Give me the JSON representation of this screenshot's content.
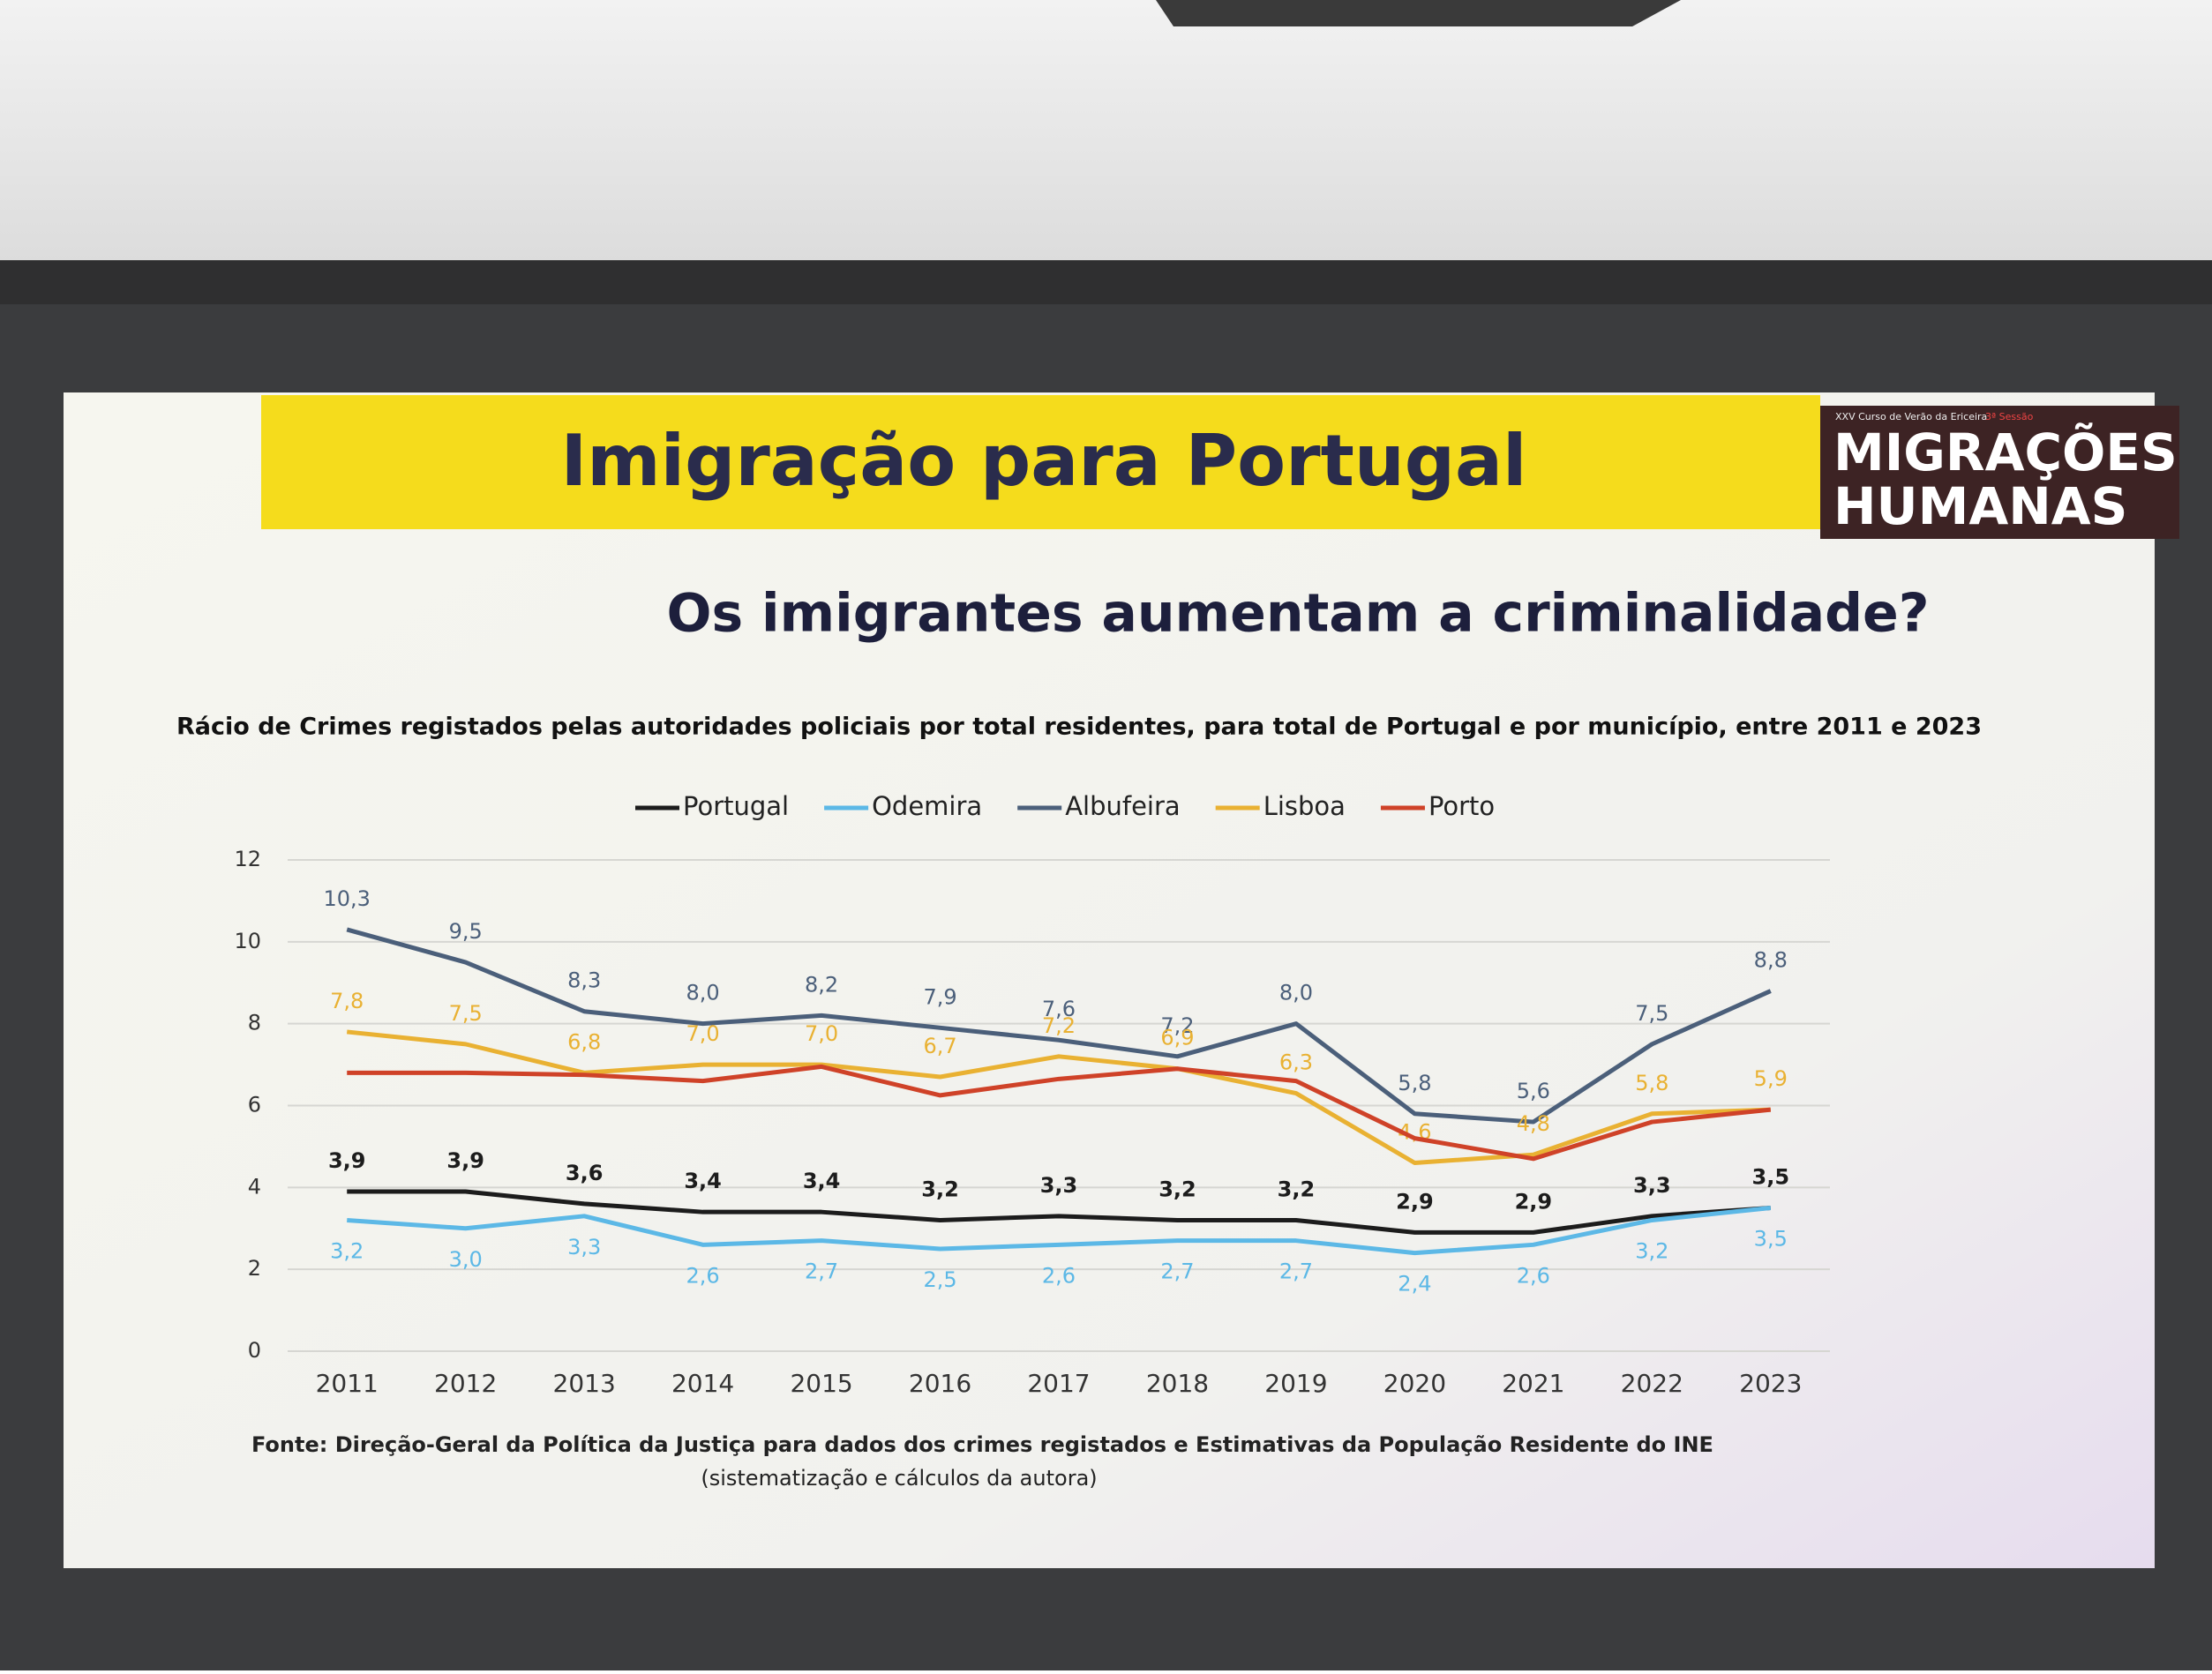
{
  "slide": {
    "title": "Imigração para Portugal",
    "question": "Os imigrantes aumentam a criminalidade?",
    "logo": {
      "caption": "XXV Curso de Verão da Ericeira",
      "session": "3ª Sessão",
      "line1": "MIGRAÇÕES",
      "line2": "HUMANAS"
    },
    "source": "Fonte: Direção-Geral da Política da Justiça para dados dos crimes registados e Estimativas da População Residente do INE",
    "source_note": "(sistematização e cálculos da autora)"
  },
  "chart_data": {
    "type": "line",
    "title": "Rácio de Crimes registados pelas autoridades policiais por total residentes, para total de Portugal e por município, entre 2011 e 2023",
    "categories": [
      "2011",
      "2012",
      "2013",
      "2014",
      "2015",
      "2016",
      "2017",
      "2018",
      "2019",
      "2020",
      "2021",
      "2022",
      "2023"
    ],
    "ylim": [
      0,
      12
    ],
    "yticks": [
      0,
      2,
      4,
      6,
      8,
      10,
      12
    ],
    "grid": true,
    "legend": "top",
    "series": [
      {
        "name": "Portugal",
        "color": "#1c1c1c",
        "label_position": "above",
        "values": [
          3.9,
          3.9,
          3.6,
          3.4,
          3.4,
          3.2,
          3.3,
          3.2,
          3.2,
          2.9,
          2.9,
          3.3,
          3.5
        ],
        "value_labels": [
          "3,9",
          "3,9",
          "3,6",
          "3,4",
          "3,4",
          "3,2",
          "3,3",
          "3,2",
          "3,2",
          "2,9",
          "2,9",
          "3,3",
          "3,5"
        ]
      },
      {
        "name": "Odemira",
        "color": "#5cb8e6",
        "label_position": "below",
        "values": [
          3.2,
          3.0,
          3.3,
          2.6,
          2.7,
          2.5,
          2.6,
          2.7,
          2.7,
          2.4,
          2.6,
          3.2,
          3.5
        ],
        "value_labels": [
          "3,2",
          "3,0",
          "3,3",
          "2,6",
          "2,7",
          "2,5",
          "2,6",
          "2,7",
          "2,7",
          "2,4",
          "2,6",
          "3,2",
          "3,5"
        ]
      },
      {
        "name": "Albufeira",
        "color": "#4b5f7a",
        "label_position": "above",
        "values": [
          10.3,
          9.5,
          8.3,
          8.0,
          8.2,
          7.9,
          7.6,
          7.2,
          8.0,
          5.8,
          5.6,
          7.5,
          8.8
        ],
        "value_labels": [
          "10,3",
          "9,5",
          "8,3",
          "8,0",
          "8,2",
          "7,9",
          "7,6",
          "7,2",
          "8,0",
          "5,8",
          "5,6",
          "7,5",
          "8,8"
        ]
      },
      {
        "name": "Lisboa",
        "color": "#e9b132",
        "label_position": "above",
        "values": [
          7.8,
          7.5,
          6.8,
          7.0,
          7.0,
          6.7,
          7.2,
          6.9,
          6.3,
          4.6,
          4.8,
          5.8,
          5.9
        ],
        "value_labels": [
          "7,8",
          "7,5",
          "6,8",
          "7,0",
          "7,0",
          "6,7",
          "7,2",
          "6,9",
          "6,3",
          "4,6",
          "4,8",
          "5,8",
          "5,9"
        ]
      },
      {
        "name": "Porto",
        "color": "#cf4228",
        "values": [
          6.8,
          6.8,
          6.75,
          6.6,
          6.95,
          6.25,
          6.65,
          6.9,
          6.6,
          5.2,
          4.7,
          5.6,
          5.9
        ]
      }
    ]
  }
}
